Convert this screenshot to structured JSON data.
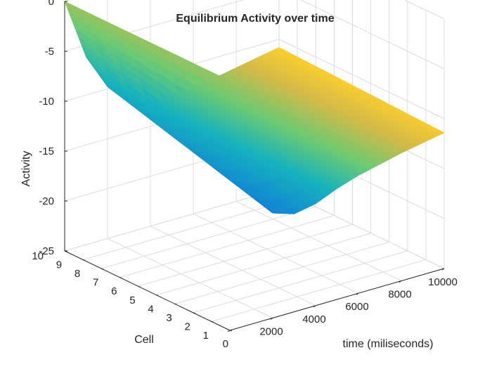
{
  "chart_data": {
    "type": "surface",
    "title": "Equilibrium Activity over time",
    "xlabel": "time (miliseconds)",
    "ylabel": "Cell",
    "zlabel": "Activity",
    "xlim": [
      0,
      10000
    ],
    "ylim": [
      1,
      10
    ],
    "zlim": [
      -25,
      0
    ],
    "x_ticks": [
      0,
      2000,
      4000,
      6000,
      8000,
      10000
    ],
    "y_ticks": [
      1,
      2,
      3,
      4,
      5,
      6,
      7,
      8,
      9,
      10
    ],
    "z_ticks": [
      0,
      -5,
      -10,
      -15,
      -20,
      -25
    ],
    "grid": true,
    "colormap": "parula",
    "surface": {
      "time": [
        0,
        1000,
        2000,
        3000,
        4000,
        5000,
        6000,
        7000,
        8000,
        9000,
        10000
      ],
      "cell": [
        10,
        1
      ],
      "activity": [
        [
          0,
          -6.2,
          -9.8,
          -11.8,
          -12.6,
          -12.6,
          -12.4,
          -12.0,
          -11.6,
          -11.2,
          -10.8
        ],
        [
          0,
          -11.5,
          -14.5,
          -15.2,
          -14.8,
          -13.9,
          -13.2,
          -12.7,
          -12.2,
          -11.8,
          -11.4
        ]
      ]
    },
    "visible_edge": {
      "time": [
        0,
        1000,
        2000,
        3000,
        4000,
        5000,
        6000,
        7000,
        8000,
        9000,
        10000
      ],
      "cell": 10,
      "activity": [
        0,
        -6.2,
        -9.8,
        -11.8,
        -12.6,
        -12.6,
        -12.4,
        -12.0,
        -11.6,
        -11.2,
        -10.8
      ]
    }
  }
}
